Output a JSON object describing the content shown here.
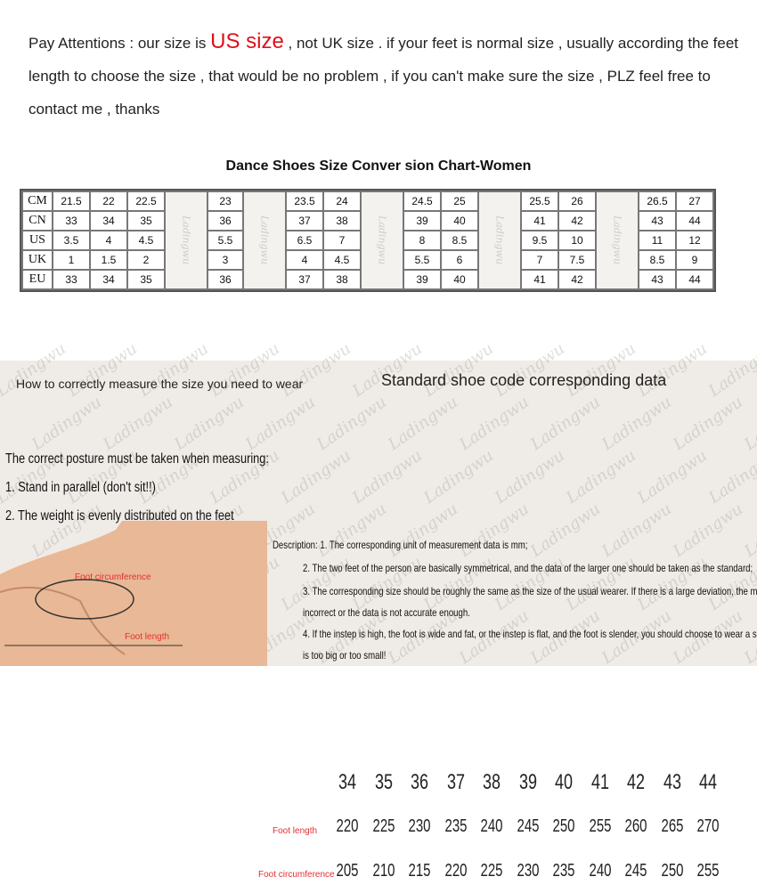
{
  "notice": {
    "part1": "Pay Attentions : our size is ",
    "highlight": "US size",
    "part2": " , not UK size . if your feet is normal size , usually according the feet length to choose the size , that would be no problem , if you can't make sure the size , PLZ feel free to contact me , thanks"
  },
  "conversion": {
    "title": "Dance Shoes Size Conver sion Chart-Women",
    "watermark": "Ladingwu",
    "groups": [
      [
        0,
        1,
        2
      ],
      [
        3
      ],
      [
        4,
        5
      ],
      [
        6,
        7
      ],
      [
        8,
        9
      ],
      [
        10,
        11
      ]
    ],
    "rows": [
      {
        "label": "CM",
        "values": [
          "21.5",
          "22",
          "22.5",
          "23",
          "23.5",
          "24",
          "24.5",
          "25",
          "25.5",
          "26",
          "26.5",
          "27"
        ]
      },
      {
        "label": "CN",
        "values": [
          "33",
          "34",
          "35",
          "36",
          "37",
          "38",
          "39",
          "40",
          "41",
          "42",
          "43",
          "44"
        ]
      },
      {
        "label": "US",
        "values": [
          "3.5",
          "4",
          "4.5",
          "5.5",
          "6.5",
          "7",
          "8",
          "8.5",
          "9.5",
          "10",
          "11",
          "12"
        ]
      },
      {
        "label": "UK",
        "values": [
          "1",
          "1.5",
          "2",
          "3",
          "4",
          "4.5",
          "5.5",
          "6",
          "7",
          "7.5",
          "8.5",
          "9"
        ]
      },
      {
        "label": "EU",
        "values": [
          "33",
          "34",
          "35",
          "36",
          "37",
          "38",
          "39",
          "40",
          "41",
          "42",
          "43",
          "44"
        ]
      }
    ]
  },
  "measure": {
    "heading": "How to correctly measure the size you need to wear",
    "posture": "The correct posture must be taken when measuring:",
    "step1": "1. Stand in parallel (don't sit!!)",
    "step2": "2. The weight is evenly distributed on the feet",
    "foot_circumference": "Foot circumference",
    "foot_length": "Foot length"
  },
  "standard": {
    "title": "Standard shoe code corresponding data",
    "sizes": [
      "34",
      "35",
      "36",
      "37",
      "38",
      "39",
      "40",
      "41",
      "42",
      "43",
      "44"
    ],
    "length_label": "Foot length",
    "lengths": [
      "220",
      "225",
      "230",
      "235",
      "240",
      "245",
      "250",
      "255",
      "260",
      "265",
      "270"
    ],
    "circ_label": "Foot circumference",
    "circumferences": [
      "205",
      "210",
      "215",
      "220",
      "225",
      "230",
      "235",
      "240",
      "245",
      "250",
      "255"
    ]
  },
  "description": [
    "Description: 1. The corresponding unit of measurement data is mm;",
    "2. The two feet of the person are basically symmetrical, and the data of the larger one should be taken as the standard;",
    "3. The corresponding size should be roughly the same as the size of the usual wearer. If there is a large deviation, the method is",
    "incorrect or the data is not accurate enough.",
    "4. If the instep is high, the foot is wide and fat, or the instep is flat, and the foot is slender, you should choose to wear a size that",
    "is too big or too small!"
  ]
}
